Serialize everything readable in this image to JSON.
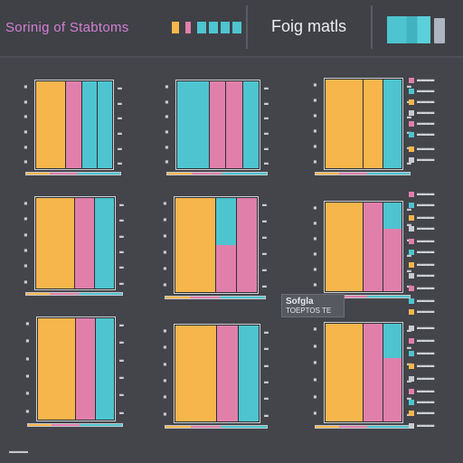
{
  "header": {
    "title_left": "Sorinig of Stabtoms",
    "title_right": "Foig matls"
  },
  "colors": {
    "orange": "#f6b64c",
    "pink": "#e17fab",
    "teal": "#4ec4d0"
  },
  "tooltip": {
    "line1": "Sofgla",
    "line2": "TOEPTOS TE"
  },
  "panels": [
    {
      "name": "panel-r1c1",
      "bars": [
        [
          [
            "orange",
            1
          ]
        ],
        [
          [
            "pink",
            1
          ]
        ],
        [
          [
            "teal",
            1
          ]
        ],
        [
          [
            "teal",
            1
          ]
        ]
      ]
    },
    {
      "name": "panel-r1c2",
      "bars": [
        [
          [
            "teal",
            1
          ]
        ],
        [
          [
            "pink",
            1
          ]
        ],
        [
          [
            "pink",
            1
          ]
        ],
        [
          [
            "teal",
            1
          ]
        ]
      ]
    },
    {
      "name": "panel-r1c3",
      "bars": [
        [
          [
            "orange",
            1
          ]
        ],
        [
          [
            "orange",
            1
          ]
        ],
        [
          [
            "teal",
            1
          ]
        ]
      ]
    },
    {
      "name": "panel-r2c1",
      "bars": [
        [
          [
            "orange",
            1
          ]
        ],
        [
          [
            "pink",
            1
          ]
        ],
        [
          [
            "teal",
            1
          ]
        ]
      ]
    },
    {
      "name": "panel-r2c2",
      "bars": [
        [
          [
            "orange",
            1
          ]
        ],
        [
          [
            "teal",
            0.5
          ],
          [
            "pink",
            0.5
          ]
        ],
        [
          [
            "pink",
            1
          ]
        ]
      ]
    },
    {
      "name": "panel-r2c3",
      "bars": [
        [
          [
            "orange",
            1
          ]
        ],
        [
          [
            "pink",
            1
          ]
        ],
        [
          [
            "teal",
            0.3
          ],
          [
            "pink",
            0.7
          ]
        ]
      ]
    },
    {
      "name": "panel-r3c1",
      "bars": [
        [
          [
            "orange",
            1
          ]
        ],
        [
          [
            "pink",
            1
          ]
        ],
        [
          [
            "teal",
            1
          ]
        ]
      ]
    },
    {
      "name": "panel-r3c2",
      "bars": [
        [
          [
            "orange",
            1
          ]
        ],
        [
          [
            "pink",
            1
          ]
        ],
        [
          [
            "teal",
            1
          ]
        ]
      ]
    },
    {
      "name": "panel-r3c3",
      "bars": [
        [
          [
            "orange",
            1
          ]
        ],
        [
          [
            "pink",
            1
          ]
        ],
        [
          [
            "teal",
            0.35
          ],
          [
            "pink",
            0.65
          ]
        ]
      ]
    }
  ],
  "side_rows": 34
}
